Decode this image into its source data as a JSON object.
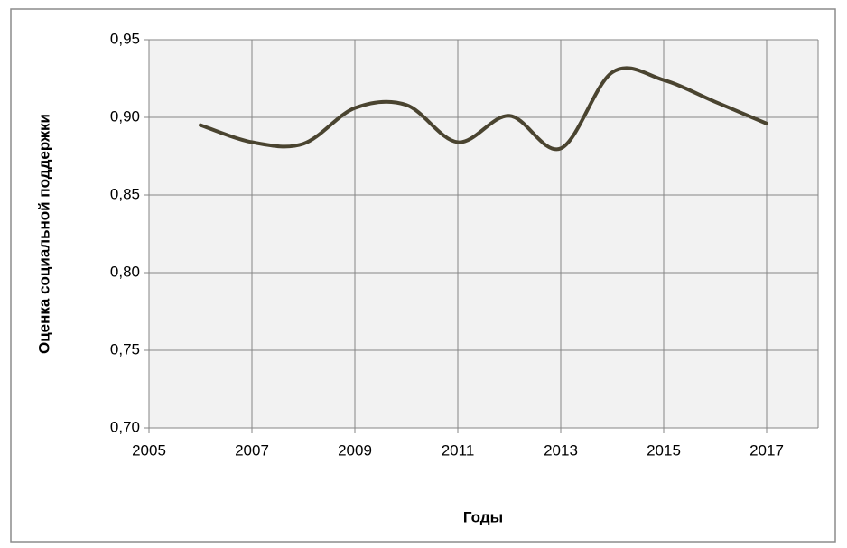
{
  "chart_data": {
    "type": "line",
    "x_label": "Годы",
    "y_label": "Оценка социальной поддержки",
    "x": [
      2006,
      2007,
      2008,
      2009,
      2010,
      2011,
      2012,
      2013,
      2014,
      2015,
      2016,
      2017
    ],
    "series": [
      {
        "color": "#4a4430",
        "values": [
          0.895,
          0.884,
          0.883,
          0.906,
          0.908,
          0.884,
          0.901,
          0.88,
          0.929,
          0.924,
          0.91,
          0.896
        ]
      }
    ],
    "xlim": [
      2005,
      2018
    ],
    "xticks": [
      2005,
      2007,
      2009,
      2011,
      2013,
      2015,
      2017
    ],
    "ylim": [
      0.7,
      0.95
    ],
    "yticks": [
      {
        "value": 0.7,
        "label": "0,70"
      },
      {
        "value": 0.75,
        "label": "0,75"
      },
      {
        "value": 0.8,
        "label": "0,80"
      },
      {
        "value": 0.85,
        "label": "0,85"
      },
      {
        "value": 0.9,
        "label": "0,90"
      },
      {
        "value": 0.95,
        "label": "0,95"
      }
    ],
    "grid": true,
    "smooth": true
  }
}
